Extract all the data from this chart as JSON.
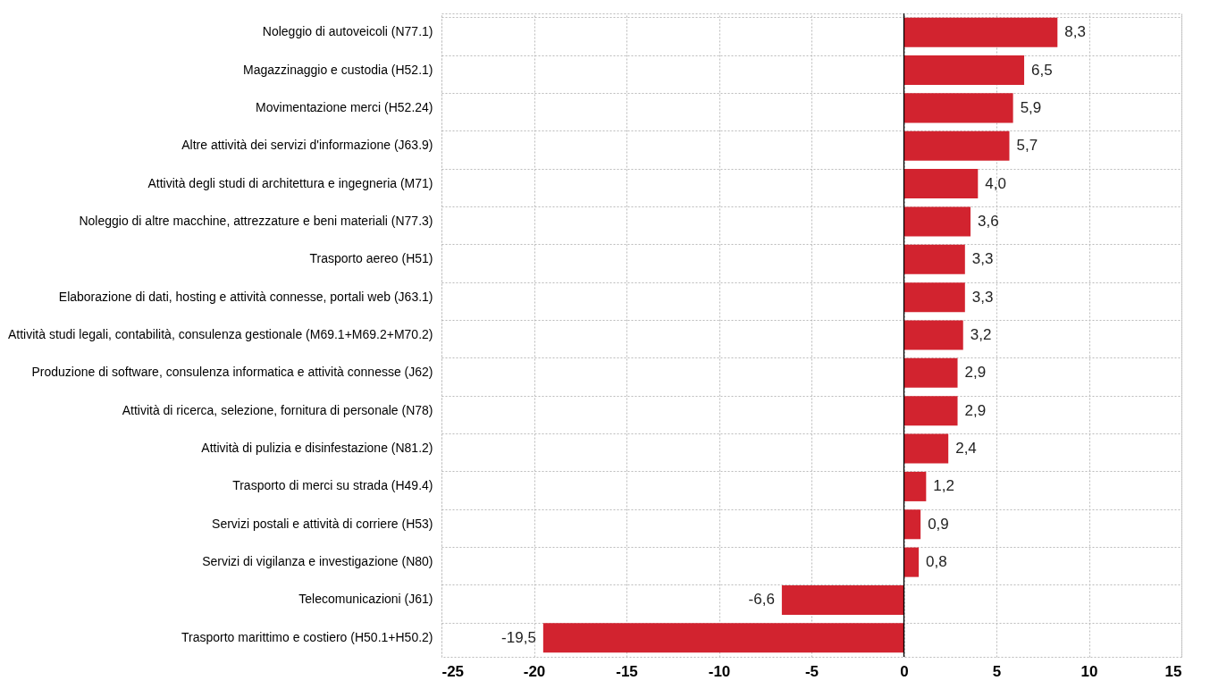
{
  "chart_data": {
    "type": "bar",
    "orientation": "horizontal",
    "categories": [
      "Noleggio di autoveicoli (N77.1)",
      "Magazzinaggio e custodia (H52.1)",
      "Movimentazione merci (H52.24)",
      "Altre attività dei servizi d'informazione (J63.9)",
      "Attività degli studi di architettura e ingegneria (M71)",
      "Noleggio di altre macchine, attrezzature e beni materiali (N77.3)",
      "Trasporto aereo (H51)",
      "Elaborazione di dati, hosting e attività connesse, portali web (J63.1)",
      "Attività studi legali, contabilità, consulenza gestionale (M69.1+M69.2+M70.2)",
      "Produzione di software, consulenza informatica e attività connesse (J62)",
      "Attività di ricerca, selezione, fornitura di personale (N78)",
      "Attività di pulizia e disinfestazione (N81.2)",
      "Trasporto di merci su strada (H49.4)",
      "Servizi postali e attività di corriere (H53)",
      "Servizi di vigilanza e investigazione (N80)",
      "Telecomunicazioni (J61)",
      "Trasporto marittimo e costiero (H50.1+H50.2)"
    ],
    "values": [
      8.3,
      6.5,
      5.9,
      5.7,
      4.0,
      3.6,
      3.3,
      3.3,
      3.2,
      2.9,
      2.9,
      2.4,
      1.2,
      0.9,
      0.8,
      -6.6,
      -19.5
    ],
    "value_labels": [
      "8,3",
      "6,5",
      "5,9",
      "5,7",
      "4,0",
      "3,6",
      "3,3",
      "3,3",
      "3,2",
      "2,9",
      "2,9",
      "2,4",
      "1,2",
      "0,9",
      "0,8",
      "-6,6",
      "-19,5"
    ],
    "color": "#d2232f",
    "xlim": [
      -25,
      15
    ],
    "xticks": [
      -25,
      -20,
      -15,
      -10,
      -5,
      0,
      5,
      10,
      15
    ],
    "grid": true,
    "ref_lines": [
      {
        "axis": "x",
        "value": 0,
        "color": "#000000"
      }
    ]
  }
}
